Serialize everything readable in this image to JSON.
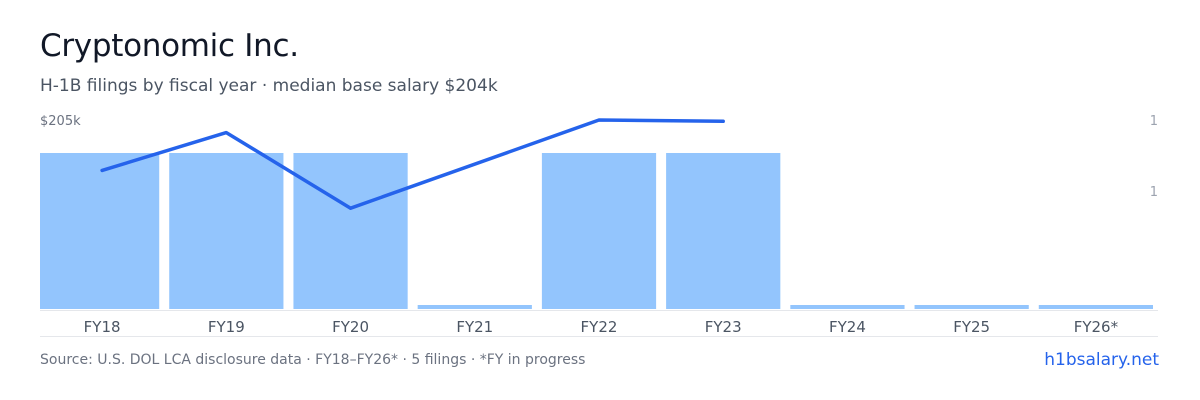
{
  "header": {
    "title": "Cryptonomic Inc.",
    "subtitle": "H-1B filings by fiscal year · median base salary $204k"
  },
  "footer": {
    "source": "Source: U.S. DOL LCA disclosure data · FY18–FY26* · 5 filings · *FY in progress",
    "link": "h1bsalary.net"
  },
  "colors": {
    "bar": "#93c5fd",
    "line": "#2563eb",
    "axis": "#e5e7eb",
    "tick_text": "#4b5563",
    "axis_label_text": "#6b7280"
  },
  "chart_data": {
    "type": "bar",
    "categories": [
      "FY18",
      "FY19",
      "FY20",
      "FY21",
      "FY22",
      "FY23",
      "FY24",
      "FY25",
      "FY26*"
    ],
    "series": [
      {
        "type": "bar",
        "axis": "right",
        "values": [
          1,
          1,
          1,
          0,
          1,
          1,
          0,
          0,
          0
        ]
      },
      {
        "type": "line",
        "axis": "left",
        "values": [
          201000,
          204000,
          198000,
          null,
          205000,
          204900,
          null,
          null,
          null
        ]
      }
    ],
    "left_axis": {
      "tick_label": "$205k",
      "range": [
        190000,
        205000
      ]
    },
    "right_axis": {
      "tick_labels": [
        "1",
        "1"
      ],
      "range": [
        0,
        1
      ]
    }
  }
}
